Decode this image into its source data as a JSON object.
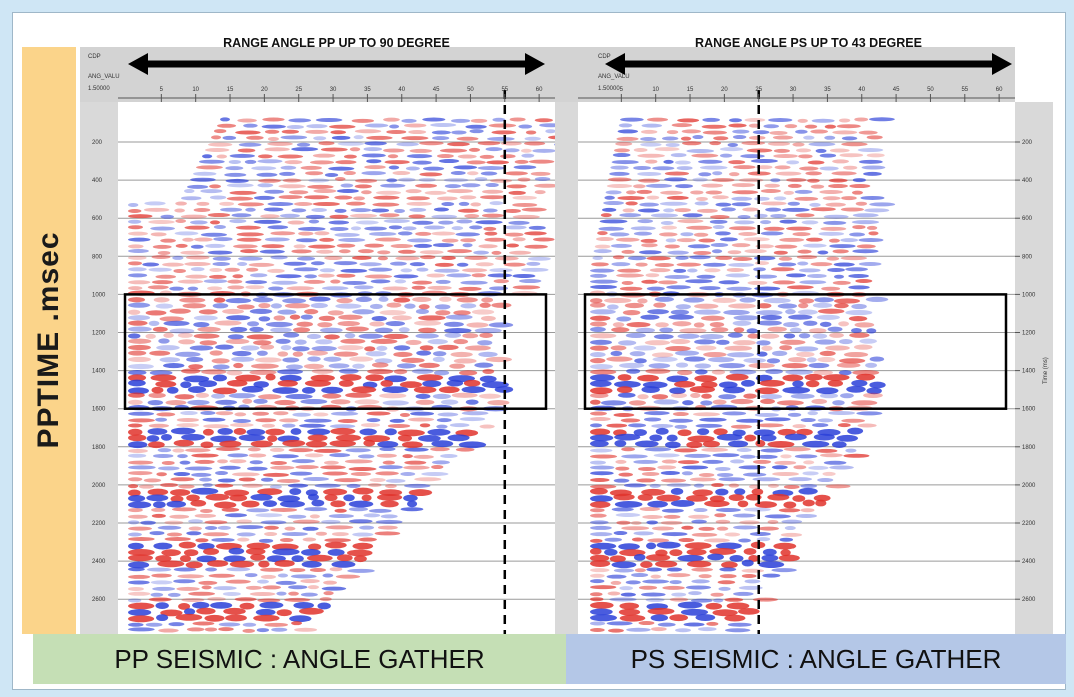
{
  "y_axis_label": "PPTIME .msec",
  "right_axis_label": "Time (ms)",
  "panels": [
    {
      "id": "pp",
      "range_title": "RANGE ANGLE PP UP TO 90 DEGREE",
      "corner_labels": [
        "CDP",
        "ANG_VALU",
        "1.50000"
      ],
      "angle_ticks": [
        "5",
        "10",
        "15",
        "20",
        "25",
        "30",
        "35",
        "40",
        "45",
        "50",
        "55",
        "60"
      ],
      "dashed_line_angle": 55,
      "footer": "PP SEISMIC : ANGLE GATHER",
      "footer_color": "#c5dfb5"
    },
    {
      "id": "ps",
      "range_title": "RANGE ANGLE PS UP TO 43 DEGREE",
      "corner_labels": [
        "CDP",
        "ANG_VALU",
        "1.50000"
      ],
      "angle_ticks": [
        "5",
        "10",
        "15",
        "20",
        "25",
        "30",
        "35",
        "40",
        "45",
        "50",
        "55",
        "60"
      ],
      "dashed_line_angle": 25,
      "footer": "PS SEISMIC : ANGLE GATHER",
      "footer_color": "#b4c7e7"
    }
  ],
  "time_ticks": [
    "200",
    "400",
    "600",
    "800",
    "1000",
    "1200",
    "1400",
    "1600",
    "1800",
    "2000",
    "2200",
    "2400",
    "2600"
  ],
  "highlight_window_ms": [
    1000,
    1600
  ],
  "colors": {
    "positive": "#e0322b",
    "negative": "#2a3fd8",
    "background": "#cfe6f5",
    "ylabel_bar": "#fbd48a"
  }
}
